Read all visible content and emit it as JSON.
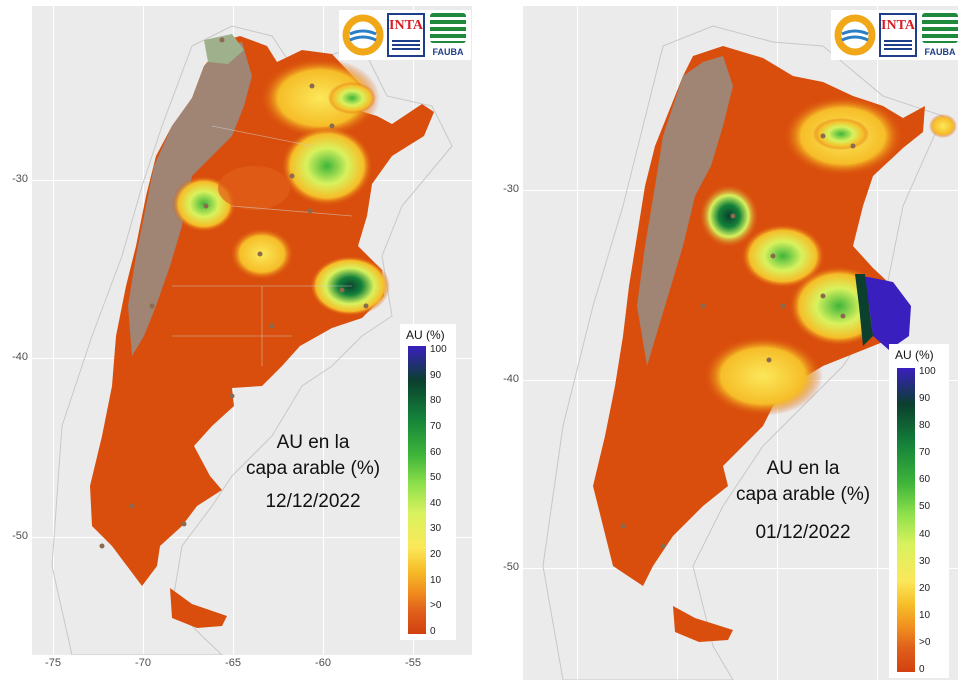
{
  "panels": [
    {
      "id": "left",
      "map_title_line1": "AU en la",
      "map_title_line2": "capa arable (%)",
      "date": "12/12/2022",
      "y_ticks": [
        "-30",
        "-40",
        "-50"
      ],
      "x_ticks": [
        "-75",
        "-70",
        "-65",
        "-60",
        "-55"
      ],
      "legend_title": "AU (%)",
      "legend_labels": [
        "100",
        "90",
        "80",
        "70",
        "60",
        "50",
        "40",
        "30",
        "20",
        "10",
        ">0",
        "0"
      ],
      "logos": {
        "inta": "INTA",
        "fauba": "FAUBA"
      }
    },
    {
      "id": "right",
      "map_title_line1": "AU en la",
      "map_title_line2": "capa arable (%)",
      "date": "01/12/2022",
      "y_ticks": [
        "-30",
        "-40",
        "-50"
      ],
      "x_ticks": [],
      "legend_title": "AU (%)",
      "legend_labels": [
        "100",
        "90",
        "80",
        "70",
        "60",
        "50",
        "40",
        "30",
        "20",
        "10",
        ">0",
        "0"
      ],
      "logos": {
        "inta": "INTA",
        "fauba": "FAUBA"
      }
    }
  ],
  "colors": {
    "dry": "#d94e0c",
    "no_data": "#a08474",
    "panel_bg": "#ebebeb",
    "scale": [
      "#d14110",
      "#e0601a",
      "#f08a1e",
      "#f6bd28",
      "#fbe85a",
      "#d8f25e",
      "#8ee04b",
      "#3fb53a",
      "#14823a",
      "#0b3f2e",
      "#3a1fbf"
    ]
  }
}
